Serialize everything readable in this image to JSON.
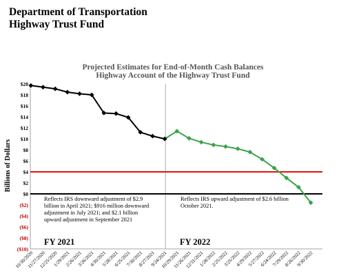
{
  "header": {
    "line1": "Department of Transportation",
    "line2": "Highway Trust Fund"
  },
  "chart_data": {
    "type": "line",
    "title": "Projected Estimates for End-of-Month Cash Balances",
    "subtitle": "Highway Account of the Highway Trust Fund",
    "ylabel": "Billions of Dollars",
    "xlabel": "",
    "ylim": [
      -10,
      20
    ],
    "yticks": [
      20,
      18,
      16,
      14,
      12,
      10,
      8,
      6,
      4,
      2,
      0,
      -2,
      -4,
      -6,
      -8,
      -10
    ],
    "ytick_labels": [
      "$20",
      "$18",
      "$16",
      "$14",
      "$12",
      "$10",
      "$8",
      "$6",
      "$4",
      "$2",
      "$0",
      "($2)",
      "($4)",
      "($6)",
      "($8)",
      "($10)"
    ],
    "grid": false,
    "x": [
      "10/30/2020",
      "11/27/2020",
      "12/25/2020",
      "1/29/2021",
      "2/26/2021",
      "3/26/2021",
      "4/30/2021",
      "5/28/2021",
      "6/25/2021",
      "7/30/2021",
      "8/27/2021",
      "9/24/2021",
      "10/29/2021",
      "11/26/2021",
      "12/31/2021",
      "1/28/2022",
      "2/25/2022",
      "3/25/2022",
      "4/29/2022",
      "5/27/2022",
      "6/24/2022",
      "7/29/2022",
      "8/26/2022",
      "9/30/2022"
    ],
    "series": [
      {
        "values": [
          19.7,
          19.4,
          19.1,
          18.5,
          18.2,
          18.0,
          14.7,
          14.6,
          13.9,
          11.2,
          10.5,
          10.0,
          null,
          null,
          null,
          null,
          null,
          null,
          null,
          null,
          null,
          null,
          null,
          null
        ],
        "color": "#000000"
      },
      {
        "values": [
          null,
          null,
          null,
          null,
          null,
          null,
          null,
          null,
          null,
          null,
          null,
          10.0,
          11.4,
          10.1,
          9.4,
          8.9,
          8.6,
          8.2,
          7.6,
          6.3,
          4.7,
          2.9,
          1.2,
          -1.6
        ],
        "color": "#3aa34a"
      }
    ],
    "reference_lines": [
      {
        "y": 4,
        "color": "#e01010"
      },
      {
        "y": 0,
        "color": "#000000"
      }
    ],
    "divider_after": "9/24/2021",
    "fiscal_years": [
      "FY 2021",
      "FY 2022"
    ],
    "annotations": [
      "Reflects IRS downward adjustment of $2.9 billion in April 2021; $916 million downward adjustment in July 2021; and $2.1 billion upward adjustment in September 2021",
      "Reflects IRS upward adjustment of $2.6 billion October 2021."
    ],
    "colors": {
      "negative_tick": "#c00000",
      "fy2021_line": "#000000",
      "fy2022_line": "#3aa34a",
      "threshold": "#e01010"
    }
  }
}
